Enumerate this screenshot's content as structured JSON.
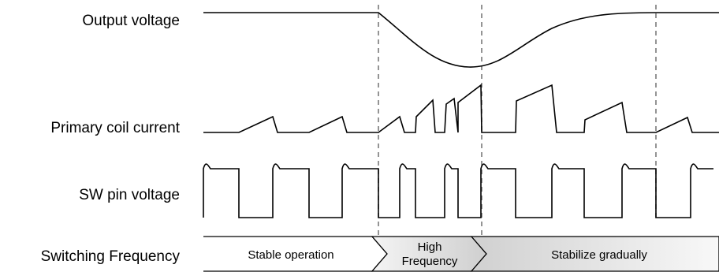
{
  "signals": [
    {
      "name": "Output voltage"
    },
    {
      "name": "Primary coil current"
    },
    {
      "name": "SW pin voltage"
    },
    {
      "name": "Switching Frequency"
    }
  ],
  "phases": [
    {
      "label": "Stable operation",
      "fill": "#ffffff"
    },
    {
      "label_line1": "High",
      "label_line2": "Frequency",
      "fill": "#d9d9d9"
    },
    {
      "label": "Stabilize gradually",
      "fill": "#d9d9d9"
    }
  ],
  "colors": {
    "trace": "#000000",
    "divider": "#7a7a7a",
    "band_fill_gray": "#d9d9d9"
  }
}
